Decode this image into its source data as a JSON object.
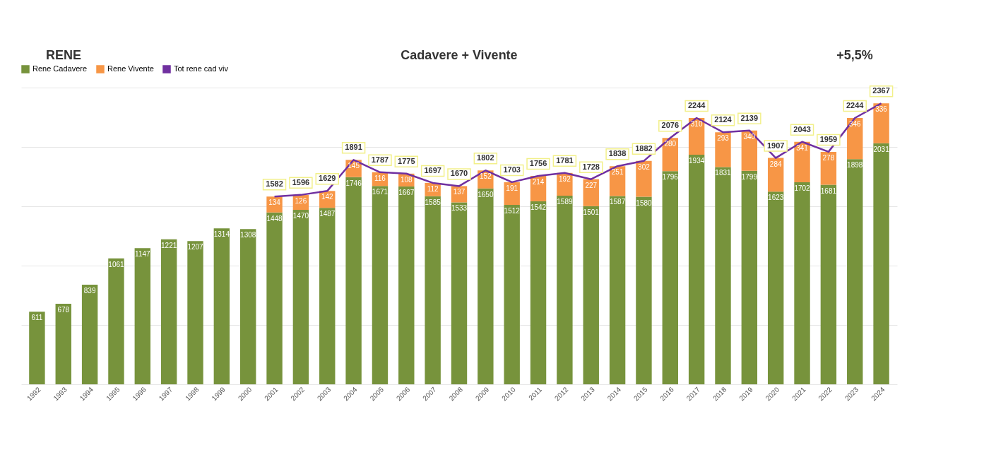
{
  "chart_data": {
    "type": "bar",
    "stacked": true,
    "annotations": [
      "RENE",
      "Cadavere + Vivente",
      "+5,5%"
    ],
    "categories": [
      "1992",
      "1993",
      "1994",
      "1995",
      "1996",
      "1997",
      "1998",
      "1999",
      "2000",
      "2001",
      "2002",
      "2003",
      "2004",
      "2005",
      "2006",
      "2007",
      "2008",
      "2009",
      "2010",
      "2011",
      "2012",
      "2013",
      "2014",
      "2015",
      "2016",
      "2017",
      "2018",
      "2019",
      "2020",
      "2021",
      "2022",
      "2023",
      "2024"
    ],
    "series": [
      {
        "name": "Rene Cadavere",
        "color": "#77933c",
        "values": [
          611,
          678,
          839,
          1061,
          1147,
          1221,
          1207,
          1314,
          1308,
          1448,
          1470,
          1487,
          1746,
          1671,
          1667,
          1585,
          1533,
          1650,
          1512,
          1542,
          1589,
          1501,
          1587,
          1580,
          1796,
          1934,
          1831,
          1799,
          1623,
          1702,
          1681,
          1898,
          2031
        ]
      },
      {
        "name": "Rene Vivente",
        "color": "#f79646",
        "values": [
          null,
          null,
          null,
          null,
          null,
          null,
          null,
          null,
          null,
          134,
          126,
          142,
          145,
          116,
          108,
          112,
          137,
          152,
          191,
          214,
          192,
          227,
          251,
          302,
          280,
          310,
          293,
          340,
          284,
          341,
          278,
          346,
          336
        ]
      },
      {
        "name": "Tot rene cad viv",
        "color": "#7030a0",
        "type": "line",
        "values": [
          null,
          null,
          null,
          null,
          null,
          null,
          null,
          null,
          null,
          1582,
          1596,
          1629,
          1891,
          1787,
          1775,
          1697,
          1670,
          1802,
          1703,
          1756,
          1781,
          1728,
          1838,
          1882,
          2076,
          2244,
          2124,
          2139,
          1907,
          2043,
          1959,
          2244,
          2367
        ]
      }
    ],
    "ylim": [
      0,
      2500
    ],
    "yticks": [
      {
        "value": 0,
        "label": null
      },
      {
        "value": 500,
        "label": null
      },
      {
        "value": 1000,
        "label": null
      },
      {
        "value": 1500,
        "label": null
      },
      {
        "value": 2000,
        "label": null
      },
      {
        "value": 2500,
        "label": null
      }
    ],
    "tick_labels": "x",
    "grid": "y",
    "legend": "top",
    "data_labels": true
  }
}
